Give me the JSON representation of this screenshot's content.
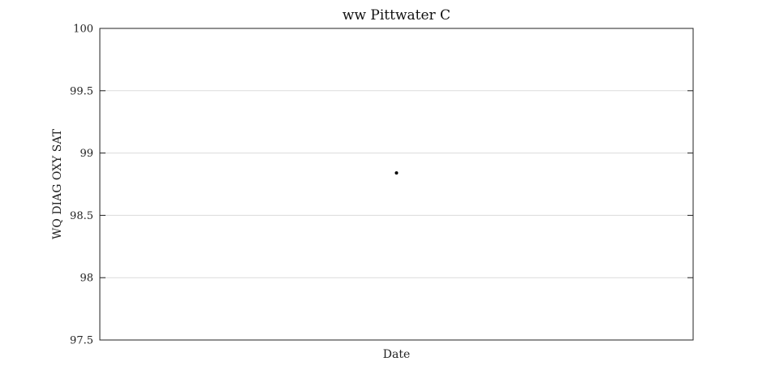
{
  "chart_data": {
    "type": "scatter",
    "title": "ww Pittwater C",
    "xlabel": "Date",
    "ylabel": "WQ DIAG OXY SAT",
    "ylim": [
      97.5,
      100
    ],
    "yticks": [
      97.5,
      98,
      98.5,
      99,
      99.5,
      100
    ],
    "ytick_labels": [
      "97.5",
      "98",
      "98.5",
      "99",
      "99.5",
      "100"
    ],
    "grid": true,
    "series": [
      {
        "points": [
          {
            "x": 0.5,
            "y": 98.84
          }
        ],
        "color": "#000000"
      }
    ]
  }
}
